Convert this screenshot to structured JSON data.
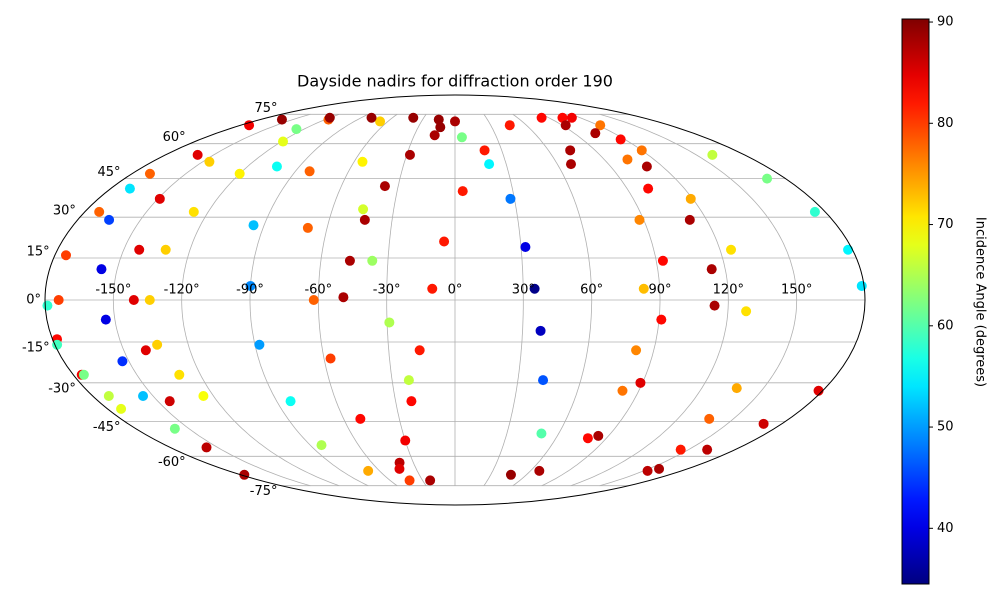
{
  "chart_data": {
    "type": "scatter",
    "projection": "mollweide",
    "title": "Dayside nadirs for diffraction order 190",
    "colorbar_label": "Incidence Angle (degrees)",
    "colormap": "jet",
    "clim": [
      34.5,
      90.3
    ],
    "cticks": [
      40,
      50,
      60,
      70,
      80,
      90
    ],
    "grid": true,
    "xlim": [
      -180,
      180
    ],
    "ylim": [
      -90,
      90
    ],
    "xticks": [
      {
        "value": -150,
        "label": "-150°"
      },
      {
        "value": -120,
        "label": "-120°"
      },
      {
        "value": -90,
        "label": "-90°"
      },
      {
        "value": -60,
        "label": "-60°"
      },
      {
        "value": -30,
        "label": "-30°"
      },
      {
        "value": 0,
        "label": "0°"
      },
      {
        "value": 30,
        "label": "30°"
      },
      {
        "value": 60,
        "label": "60°"
      },
      {
        "value": 90,
        "label": "90°"
      },
      {
        "value": 120,
        "label": "120°"
      },
      {
        "value": 150,
        "label": "150°"
      }
    ],
    "yticks": [
      {
        "value": -75,
        "label": "-75°"
      },
      {
        "value": -60,
        "label": "-60°"
      },
      {
        "value": -45,
        "label": "-45°"
      },
      {
        "value": -30,
        "label": "-30°"
      },
      {
        "value": -15,
        "label": "-15°"
      },
      {
        "value": 0,
        "label": "0°"
      },
      {
        "value": 15,
        "label": "15°"
      },
      {
        "value": 30,
        "label": "30°"
      },
      {
        "value": 45,
        "label": "45°"
      },
      {
        "value": 60,
        "label": "60°"
      },
      {
        "value": 75,
        "label": "75°"
      }
    ],
    "series": [
      {
        "x": [
          -49,
          -47,
          -43,
          -37,
          -28,
          -15,
          0
        ],
        "y": [
          1,
          14,
          29,
          42,
          55,
          64,
          71
        ],
        "c": [
          88,
          88,
          88,
          88,
          88,
          88,
          88
        ]
      },
      {
        "x": [
          -40,
          -30,
          -22,
          -16,
          -10,
          -5,
          4,
          19,
          46,
          83,
          112
        ],
        "y": [
          -63,
          -53,
          -37,
          -18,
          4,
          21,
          40,
          57,
          69,
          73,
          73
        ],
        "c": [
          87,
          84,
          83,
          82,
          82,
          82,
          82,
          82,
          82,
          83,
          84
        ]
      },
      {
        "x": [
          5,
          20,
          28,
          32,
          35,
          38,
          42,
          50
        ],
        "y": [
          63,
          51,
          37,
          19,
          4,
          -11,
          -29,
          -50
        ],
        "c": [
          62,
          55,
          48,
          40,
          35,
          38,
          46,
          60
        ]
      },
      {
        "x": [
          -67,
          -55,
          -45,
          -37,
          -29,
          -22
        ],
        "y": [
          71,
          52,
          33,
          14,
          -8,
          -29
        ],
        "c": [
          72,
          70,
          67,
          64,
          65,
          66
        ]
      },
      {
        "x": [
          -117,
          -82,
          -69,
          -62,
          -57,
          -51,
          -43,
          -23
        ],
        "y": [
          72,
          48,
          26,
          0,
          -21,
          -44,
          -66,
          -72
        ],
        "c": [
          78,
          78,
          78,
          78,
          80,
          83,
          85,
          88
        ]
      },
      {
        "x": [
          -126,
          -103,
          -95,
          -90,
          -88,
          -83,
          -83,
          -69,
          -42
        ],
        "y": [
          67,
          50,
          27,
          5,
          -16,
          -37,
          -55,
          -67,
          -72
        ],
        "c": [
          62,
          56,
          52,
          49,
          50,
          56,
          65,
          74,
          80
        ]
      },
      {
        "x": [
          -173,
          -160,
          -149,
          -143,
          -141,
          -140,
          -144,
          -157,
          -177
        ],
        "y": [
          69,
          55,
          37,
          18,
          0,
          -18,
          -37,
          -56,
          -69
        ],
        "c": [
          84,
          85,
          85,
          85,
          85,
          85,
          86,
          87,
          88
        ]
      },
      {
        "x": [
          -160,
          -120,
          -80,
          -40,
          -15,
          -12
        ],
        "y": [
          72,
          73,
          73,
          73,
          72,
          68
        ],
        "c": [
          89,
          89,
          89,
          89,
          89,
          89
        ]
      },
      {
        "x": [
          -170,
          -165,
          -157,
          -154,
          -153,
          -155,
          -158
        ],
        "y": [
          41,
          29,
          11,
          -7,
          -22,
          -35,
          -48
        ],
        "c": [
          54,
          45,
          40,
          40,
          44,
          52,
          62
        ]
      },
      {
        "x": [
          -146,
          -170,
          -173,
          -175,
          -174,
          -178,
          -176
        ],
        "y": [
          52,
          47,
          32,
          16,
          0,
          -14,
          -27
        ],
        "c": [
          72,
          78,
          78,
          80,
          80,
          83,
          84
        ]
      },
      {
        "x": [
          -179,
          -179,
          -175,
          -172,
          -173
        ],
        "y": [
          -2,
          -16,
          -27,
          -35,
          -40
        ],
        "c": [
          58,
          59,
          62,
          66,
          68
        ]
      },
      {
        "x": [
          -119,
          -120,
          -127,
          -131,
          -134,
          -134,
          -130,
          -125
        ],
        "y": [
          61,
          47,
          32,
          18,
          0,
          -16,
          -27,
          -35
        ],
        "c": [
          68,
          70,
          71,
          72,
          72,
          72,
          71,
          69
        ]
      },
      {
        "x": [
          103,
          117,
          101,
          93,
          91,
          89,
          84,
          67,
          47
        ],
        "y": [
          73,
          62,
          41,
          14,
          -7,
          -30,
          -51,
          -67,
          -69
        ],
        "c": [
          83,
          83,
          83,
          83,
          83,
          85,
          88,
          88,
          89
        ]
      },
      {
        "x": [
          122,
          104,
          88,
          83,
          82,
          82,
          79
        ],
        "y": [
          69,
          53,
          29,
          4,
          -18,
          -33,
          -52
        ],
        "c": [
          77,
          77,
          76,
          73,
          76,
          77,
          83
        ]
      },
      {
        "x": [
          120,
          119,
          125,
          128,
          137,
          137,
          145,
          153
        ],
        "y": [
          57,
          37,
          18,
          -4,
          -32,
          -44,
          -57,
          -67
        ],
        "c": [
          77,
          74,
          71,
          71,
          74,
          78,
          82,
          87
        ]
      },
      {
        "x": [
          178,
          170,
          162,
          158
        ],
        "y": [
          -33,
          -46,
          -57,
          -66
        ],
        "c": [
          85,
          86,
          87,
          88
        ]
      },
      {
        "x": [
          106,
          111,
          112,
          114,
          114
        ],
        "y": [
          65,
          50,
          29,
          11,
          -2
        ],
        "c": [
          88,
          88,
          88,
          88,
          88
        ]
      },
      {
        "x": [
          160,
          170,
          175,
          178,
          179
        ],
        "y": [
          55,
          45,
          32,
          18,
          5
        ],
        "c": [
          66,
          62,
          58,
          55,
          54
        ]
      },
      {
        "x": [
          93,
          74,
          68
        ],
        "y": [
          69,
          57,
          51
        ],
        "c": [
          88,
          88,
          88
        ]
      }
    ]
  }
}
